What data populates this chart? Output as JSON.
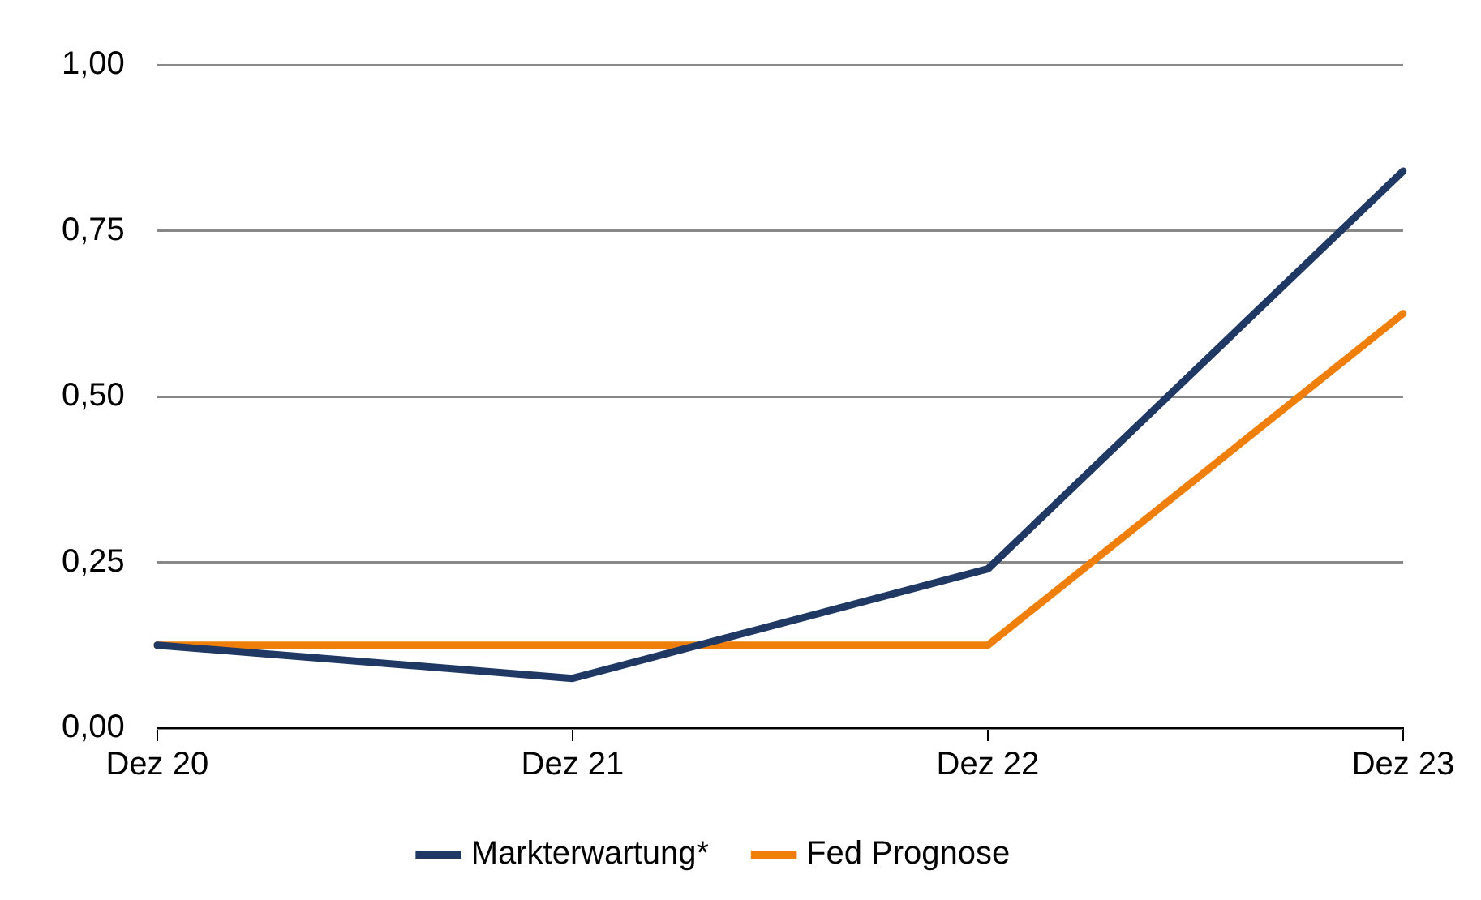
{
  "chart_data": {
    "type": "line",
    "categories": [
      "Dez 20",
      "Dez 21",
      "Dez 22",
      "Dez 23"
    ],
    "series": [
      {
        "name": "Markterwartung*",
        "color": "#1f3864",
        "values": [
          0.125,
          0.075,
          0.24,
          0.84
        ]
      },
      {
        "name": "Fed Prognose",
        "color": "#f07f09",
        "values": [
          0.125,
          0.125,
          0.125,
          0.625
        ]
      }
    ],
    "ylim": [
      0,
      1
    ],
    "yticks": [
      {
        "value": 0,
        "label": "0,00"
      },
      {
        "value": 0.25,
        "label": "0,25"
      },
      {
        "value": 0.5,
        "label": "0,50"
      },
      {
        "value": 0.75,
        "label": "0,75"
      },
      {
        "value": 1,
        "label": "1,00"
      }
    ],
    "grid": "y",
    "legend": "bottom",
    "marker": "none",
    "line_style": "solid"
  }
}
